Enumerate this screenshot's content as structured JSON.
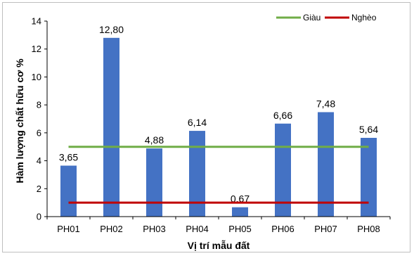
{
  "chart_data": {
    "type": "bar",
    "categories": [
      "PH01",
      "PH02",
      "PH03",
      "PH04",
      "PH05",
      "PH06",
      "PH07",
      "PH08"
    ],
    "values": [
      3.65,
      12.8,
      4.88,
      6.14,
      0.67,
      6.66,
      7.48,
      5.64
    ],
    "data_labels": [
      "3,65",
      "12,80",
      "4,88",
      "6,14",
      "0,67",
      "6,66",
      "7,48",
      "5,64"
    ],
    "xlabel": "Vị trí mẫu đất",
    "ylabel": "Hàm lượng chất hữu cơ %",
    "ylim": [
      0,
      14
    ],
    "yticks": [
      0,
      2,
      4,
      6,
      8,
      10,
      12,
      14
    ],
    "grid": false,
    "legend_position": "top-right",
    "bar_color": "#4472c4",
    "reference_lines": [
      {
        "name": "Giàu",
        "value": 5,
        "color": "#70ad47"
      },
      {
        "name": "Nghèo",
        "value": 1,
        "color": "#c00000"
      }
    ]
  }
}
